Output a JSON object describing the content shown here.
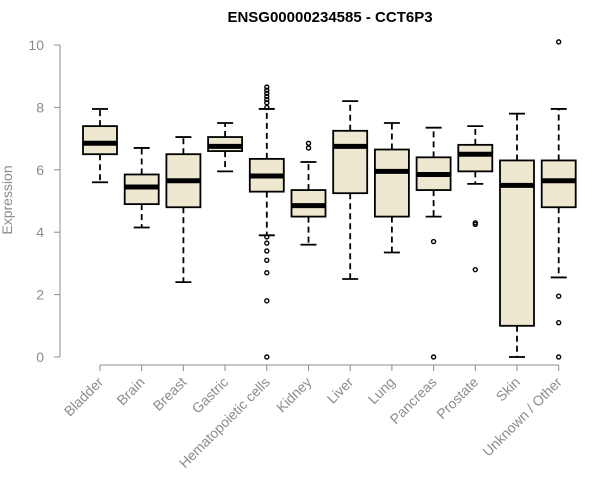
{
  "chart_data": {
    "type": "boxplot",
    "title": "ENSG00000234585 - CCT6P3",
    "xlabel": "",
    "ylabel": "Expression",
    "ylim": [
      0,
      10
    ],
    "yticks": [
      0,
      2,
      4,
      6,
      8,
      10
    ],
    "colors": {
      "box_fill": "#efe8d0",
      "stroke": "#000000",
      "axis": "#8c8c8c"
    },
    "categories": [
      "Bladder",
      "Brain",
      "Breast",
      "Gastric",
      "Hematopoietic cells",
      "Kidney",
      "Liver",
      "Lung",
      "Pancreas",
      "Prostate",
      "Skin",
      "Unknown / Other"
    ],
    "boxes": [
      {
        "category": "Bladder",
        "whisker_low": 5.6,
        "q1": 6.5,
        "median": 6.85,
        "q3": 7.4,
        "whisker_high": 7.95,
        "outliers": []
      },
      {
        "category": "Brain",
        "whisker_low": 4.15,
        "q1": 4.9,
        "median": 5.45,
        "q3": 5.85,
        "whisker_high": 6.7,
        "outliers": []
      },
      {
        "category": "Breast",
        "whisker_low": 2.4,
        "q1": 4.8,
        "median": 5.65,
        "q3": 6.5,
        "whisker_high": 7.05,
        "outliers": []
      },
      {
        "category": "Gastric",
        "whisker_low": 5.95,
        "q1": 6.6,
        "median": 6.75,
        "q3": 7.05,
        "whisker_high": 7.5,
        "outliers": []
      },
      {
        "category": "Hematopoietic cells",
        "whisker_low": 3.9,
        "q1": 5.3,
        "median": 5.8,
        "q3": 6.35,
        "whisker_high": 7.95,
        "outliers": [
          0.0,
          1.8,
          2.7,
          3.1,
          3.4,
          3.65,
          3.85,
          8.0,
          8.15,
          8.25,
          8.35,
          8.45,
          8.55,
          8.65
        ]
      },
      {
        "category": "Kidney",
        "whisker_low": 3.6,
        "q1": 4.5,
        "median": 4.85,
        "q3": 5.35,
        "whisker_high": 6.25,
        "outliers": [
          6.7,
          6.85
        ]
      },
      {
        "category": "Liver",
        "whisker_low": 2.5,
        "q1": 5.25,
        "median": 6.75,
        "q3": 7.25,
        "whisker_high": 8.2,
        "outliers": []
      },
      {
        "category": "Lung",
        "whisker_low": 3.35,
        "q1": 4.5,
        "median": 5.95,
        "q3": 6.65,
        "whisker_high": 7.5,
        "outliers": []
      },
      {
        "category": "Pancreas",
        "whisker_low": 4.5,
        "q1": 5.35,
        "median": 5.85,
        "q3": 6.4,
        "whisker_high": 7.35,
        "outliers": [
          0.0,
          3.7
        ]
      },
      {
        "category": "Prostate",
        "whisker_low": 5.55,
        "q1": 5.95,
        "median": 6.5,
        "q3": 6.8,
        "whisker_high": 7.4,
        "outliers": [
          2.8,
          4.25,
          4.3
        ]
      },
      {
        "category": "Skin",
        "whisker_low": 0.0,
        "q1": 1.0,
        "median": 5.5,
        "q3": 6.3,
        "whisker_high": 7.8,
        "outliers": []
      },
      {
        "category": "Unknown / Other",
        "whisker_low": 2.55,
        "q1": 4.8,
        "median": 5.65,
        "q3": 6.3,
        "whisker_high": 7.95,
        "outliers": [
          0.0,
          1.1,
          1.95,
          10.1
        ]
      }
    ]
  }
}
